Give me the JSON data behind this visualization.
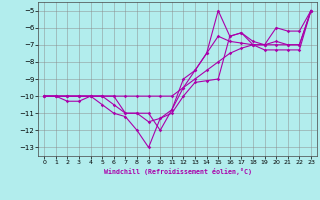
{
  "xlabel": "Windchill (Refroidissement éolien,°C)",
  "background_color": "#b2eded",
  "grid_color": "#888888",
  "line_color": "#aa00aa",
  "xlim": [
    -0.5,
    23.5
  ],
  "ylim": [
    -13.5,
    -4.5
  ],
  "yticks": [
    -13,
    -12,
    -11,
    -10,
    -9,
    -8,
    -7,
    -6,
    -5
  ],
  "xticks": [
    0,
    1,
    2,
    3,
    4,
    5,
    6,
    7,
    8,
    9,
    10,
    11,
    12,
    13,
    14,
    15,
    16,
    17,
    18,
    19,
    20,
    21,
    22,
    23
  ],
  "line1_x": [
    0,
    1,
    2,
    3,
    4,
    5,
    6,
    7,
    8,
    9,
    10,
    11,
    12,
    13,
    14,
    15,
    16,
    17,
    18,
    19,
    20,
    21,
    22,
    23
  ],
  "line1_y": [
    -10,
    -10,
    -10,
    -10,
    -10,
    -10,
    -10,
    -10,
    -10,
    -10,
    -10,
    -10,
    -9.5,
    -9,
    -8.5,
    -8,
    -7.5,
    -7.2,
    -7,
    -7,
    -7,
    -7,
    -7,
    -5
  ],
  "line2_x": [
    0,
    1,
    2,
    3,
    4,
    5,
    6,
    7,
    8,
    9,
    10,
    11,
    12,
    13,
    14,
    15,
    16,
    17,
    18,
    19,
    20,
    21,
    22,
    23
  ],
  "line2_y": [
    -10,
    -10,
    -10.3,
    -10.3,
    -10,
    -10.5,
    -11,
    -11.2,
    -12,
    -13,
    -11.3,
    -11,
    -10,
    -9.2,
    -9.1,
    -9,
    -6.5,
    -6.3,
    -7,
    -7.3,
    -7.3,
    -7.3,
    -7.3,
    -5
  ],
  "line3_x": [
    0,
    1,
    2,
    3,
    4,
    5,
    6,
    7,
    8,
    9,
    10,
    11,
    12,
    13,
    14,
    15,
    16,
    17,
    18,
    19,
    20,
    21,
    22,
    23
  ],
  "line3_y": [
    -10,
    -10,
    -10,
    -10,
    -10,
    -10,
    -10,
    -11,
    -11,
    -11,
    -12,
    -10.8,
    -9,
    -8.5,
    -7.5,
    -5,
    -6.5,
    -6.3,
    -6.8,
    -7,
    -6,
    -6.2,
    -6.2,
    -5
  ],
  "line4_x": [
    0,
    1,
    2,
    3,
    4,
    5,
    6,
    7,
    8,
    9,
    10,
    11,
    12,
    13,
    14,
    15,
    16,
    17,
    18,
    19,
    20,
    21,
    22,
    23
  ],
  "line4_y": [
    -10,
    -10,
    -10,
    -10,
    -10,
    -10,
    -10.5,
    -11,
    -11,
    -11.5,
    -11.3,
    -10.8,
    -9.5,
    -8.5,
    -7.5,
    -6.5,
    -6.8,
    -6.9,
    -7,
    -7,
    -6.8,
    -7,
    -7,
    -5
  ]
}
